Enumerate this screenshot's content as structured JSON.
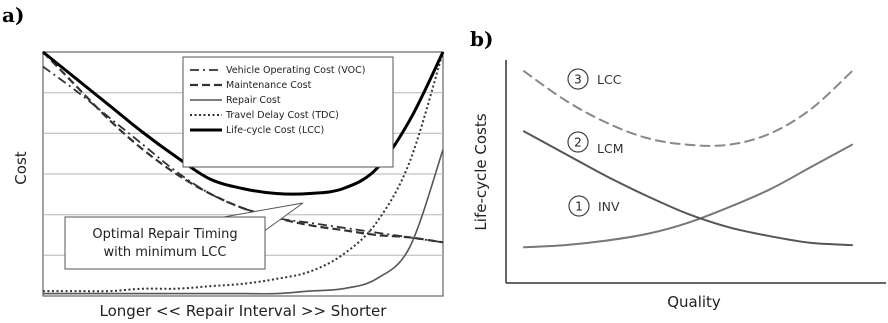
{
  "chart_data": [
    {
      "type": "line",
      "panel_label": "a)",
      "xlabel": "Longer << Repair Interval >> Shorter",
      "ylabel": "Cost",
      "grid": true,
      "legend_position": "top-right",
      "series": [
        {
          "name": "Vehicle Operating Cost (VOC)",
          "style": "long-dash-dot",
          "values": [
            0.94,
            0.84,
            0.73,
            0.62,
            0.51,
            0.42,
            0.36,
            0.32,
            0.3,
            0.28,
            0.26,
            0.24,
            0.22
          ]
        },
        {
          "name": "Maintenance Cost",
          "style": "dashed",
          "values": [
            1.0,
            0.86,
            0.72,
            0.6,
            0.5,
            0.42,
            0.36,
            0.32,
            0.29,
            0.27,
            0.25,
            0.24,
            0.22
          ]
        },
        {
          "name": "Repair Cost",
          "style": "solid-thin",
          "values": [
            0.01,
            0.01,
            0.01,
            0.01,
            0.01,
            0.01,
            0.01,
            0.01,
            0.02,
            0.03,
            0.07,
            0.2,
            0.6
          ]
        },
        {
          "name": "Travel Delay Cost (TDC)",
          "style": "dotted",
          "values": [
            0.02,
            0.02,
            0.02,
            0.03,
            0.03,
            0.04,
            0.05,
            0.07,
            0.1,
            0.17,
            0.3,
            0.55,
            1.0
          ]
        },
        {
          "name": "Life-cycle Cost (LCC)",
          "style": "solid-thick",
          "values": [
            1.0,
            0.89,
            0.78,
            0.67,
            0.57,
            0.48,
            0.44,
            0.42,
            0.42,
            0.44,
            0.52,
            0.72,
            1.0
          ]
        }
      ],
      "annotation": {
        "lines": [
          "Optimal Repair Timing",
          "with minimum LCC"
        ]
      }
    },
    {
      "type": "line",
      "panel_label": "b)",
      "xlabel": "Quality",
      "ylabel": "Life-cycle Costs",
      "grid": false,
      "series": [
        {
          "number": "1",
          "name": "INV",
          "style": "solid-gray",
          "values": [
            0.16,
            0.17,
            0.19,
            0.22,
            0.27,
            0.34,
            0.42,
            0.52,
            0.62
          ]
        },
        {
          "number": "2",
          "name": "LCM",
          "style": "solid-dark",
          "values": [
            0.68,
            0.58,
            0.48,
            0.39,
            0.31,
            0.25,
            0.21,
            0.18,
            0.17
          ]
        },
        {
          "number": "3",
          "name": "LCC",
          "style": "dashed-gray",
          "values": [
            0.95,
            0.82,
            0.72,
            0.65,
            0.62,
            0.62,
            0.67,
            0.78,
            0.95
          ]
        }
      ]
    }
  ]
}
